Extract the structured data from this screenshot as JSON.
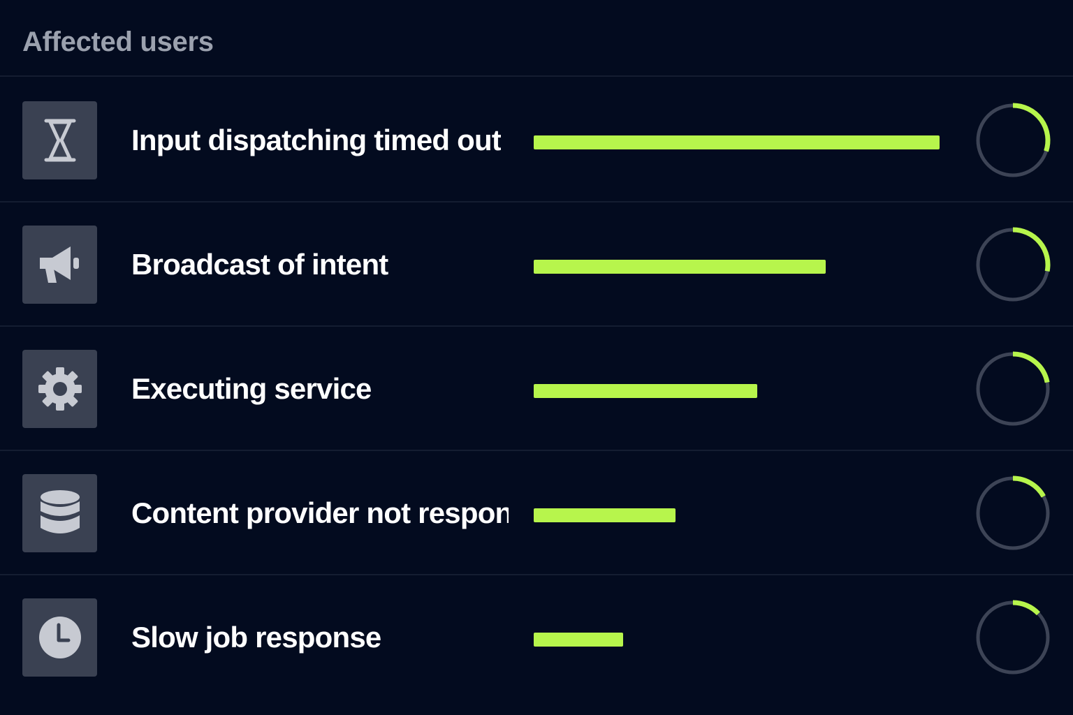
{
  "header": {
    "title": "Affected users"
  },
  "colors": {
    "background": "#030b1f",
    "accent": "#b7f54c",
    "tile": "#3a4152",
    "icon": "#c7cad2",
    "ring_track": "#3d4456",
    "divider": "#141d31"
  },
  "rows": [
    {
      "label": "Input dispatching timed out",
      "icon": "hourglass-icon",
      "bar_percent": 100,
      "ring_fraction": 0.3
    },
    {
      "label": "Broadcast of intent",
      "icon": "megaphone-icon",
      "bar_percent": 72,
      "ring_fraction": 0.28
    },
    {
      "label": "Executing service",
      "icon": "gear-icon",
      "bar_percent": 55,
      "ring_fraction": 0.22
    },
    {
      "label": "Content provider not responding",
      "icon": "database-icon",
      "bar_percent": 35,
      "ring_fraction": 0.17
    },
    {
      "label": "Slow job response",
      "icon": "clock-icon",
      "bar_percent": 22,
      "ring_fraction": 0.13
    }
  ]
}
